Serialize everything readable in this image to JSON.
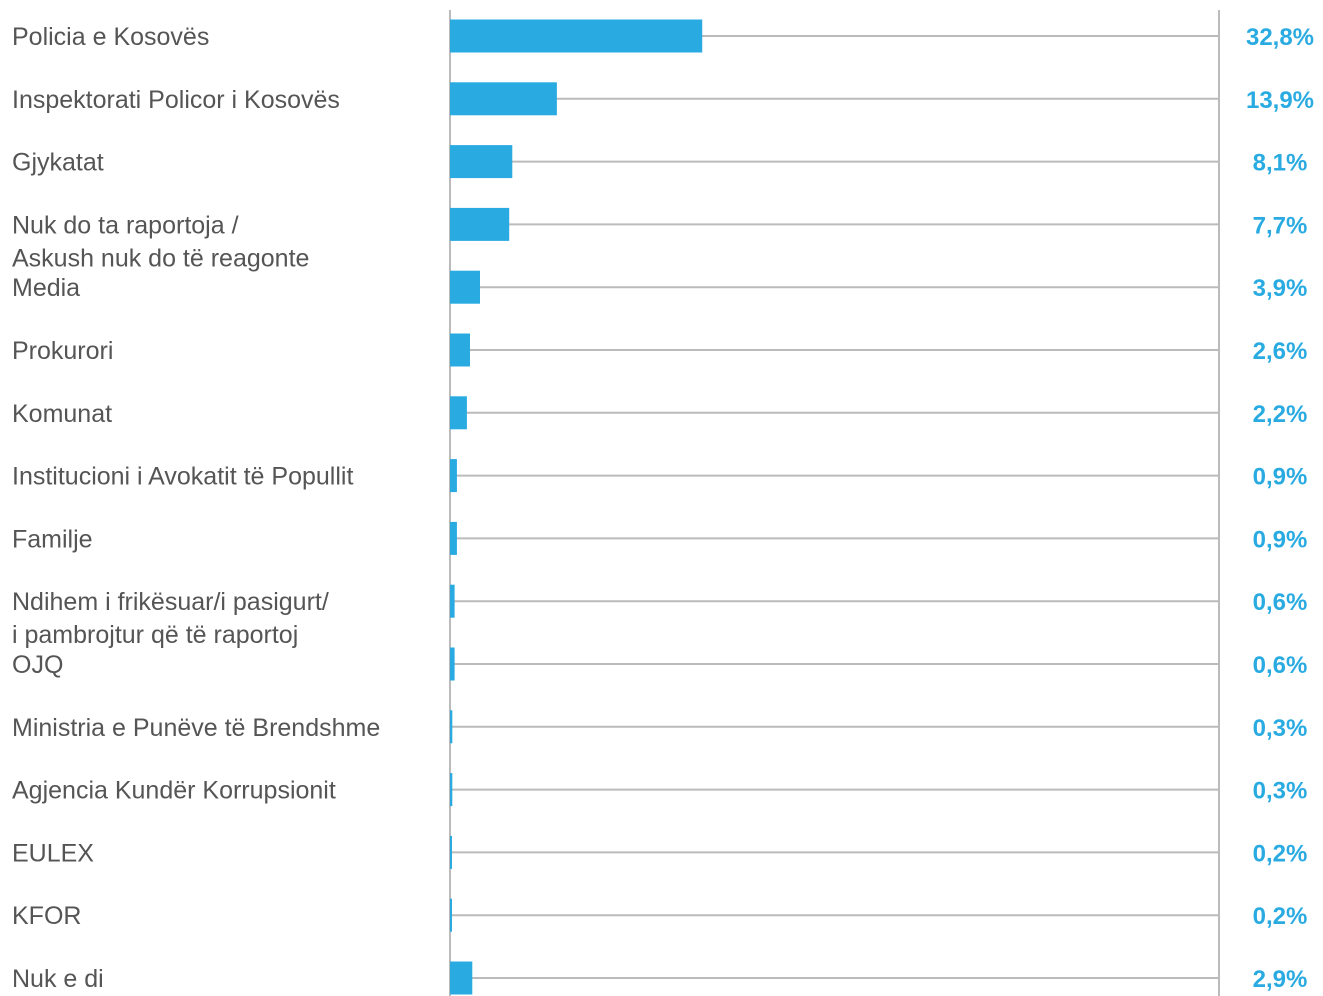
{
  "chart_data": {
    "type": "bar",
    "orientation": "horizontal",
    "title": "",
    "xlabel": "",
    "ylabel": "",
    "xlim": [
      0,
      100
    ],
    "grid": false,
    "legend": "none",
    "colors": {
      "bar": "#29abe2",
      "value_label": "#29abe2",
      "category_label": "#555555",
      "track": "#bbbbbb"
    },
    "categories": [
      [
        "Policia e Kosovës"
      ],
      [
        "Inspektorati Policor i Kosovës"
      ],
      [
        "Gjykatat"
      ],
      [
        "Nuk do ta raportoja /",
        "Askush nuk do të reagonte"
      ],
      [
        "Media"
      ],
      [
        "Prokurori"
      ],
      [
        "Komunat"
      ],
      [
        "Institucioni i Avokatit të Popullit"
      ],
      [
        "Familje"
      ],
      [
        "Ndihem i frikësuar/i pasigurt/",
        "i pambrojtur që të raportoj"
      ],
      [
        "OJQ"
      ],
      [
        "Ministria e Punëve të Brendshme"
      ],
      [
        "Agjencia Kundër Korrupsionit"
      ],
      [
        "EULEX"
      ],
      [
        "KFOR"
      ],
      [
        "Nuk e di"
      ]
    ],
    "values": [
      32.8,
      13.9,
      8.1,
      7.7,
      3.9,
      2.6,
      2.2,
      0.9,
      0.9,
      0.6,
      0.6,
      0.3,
      0.3,
      0.2,
      0.2,
      2.9
    ],
    "value_labels": [
      "32,8%",
      "13,9%",
      "8,1%",
      "7,7%",
      "3,9%",
      "2,6%",
      "2,2%",
      "0,9%",
      "0,9%",
      "0,6%",
      "0,6%",
      "0,3%",
      "0,3%",
      "0,2%",
      "0,2%",
      "2,9%"
    ]
  }
}
